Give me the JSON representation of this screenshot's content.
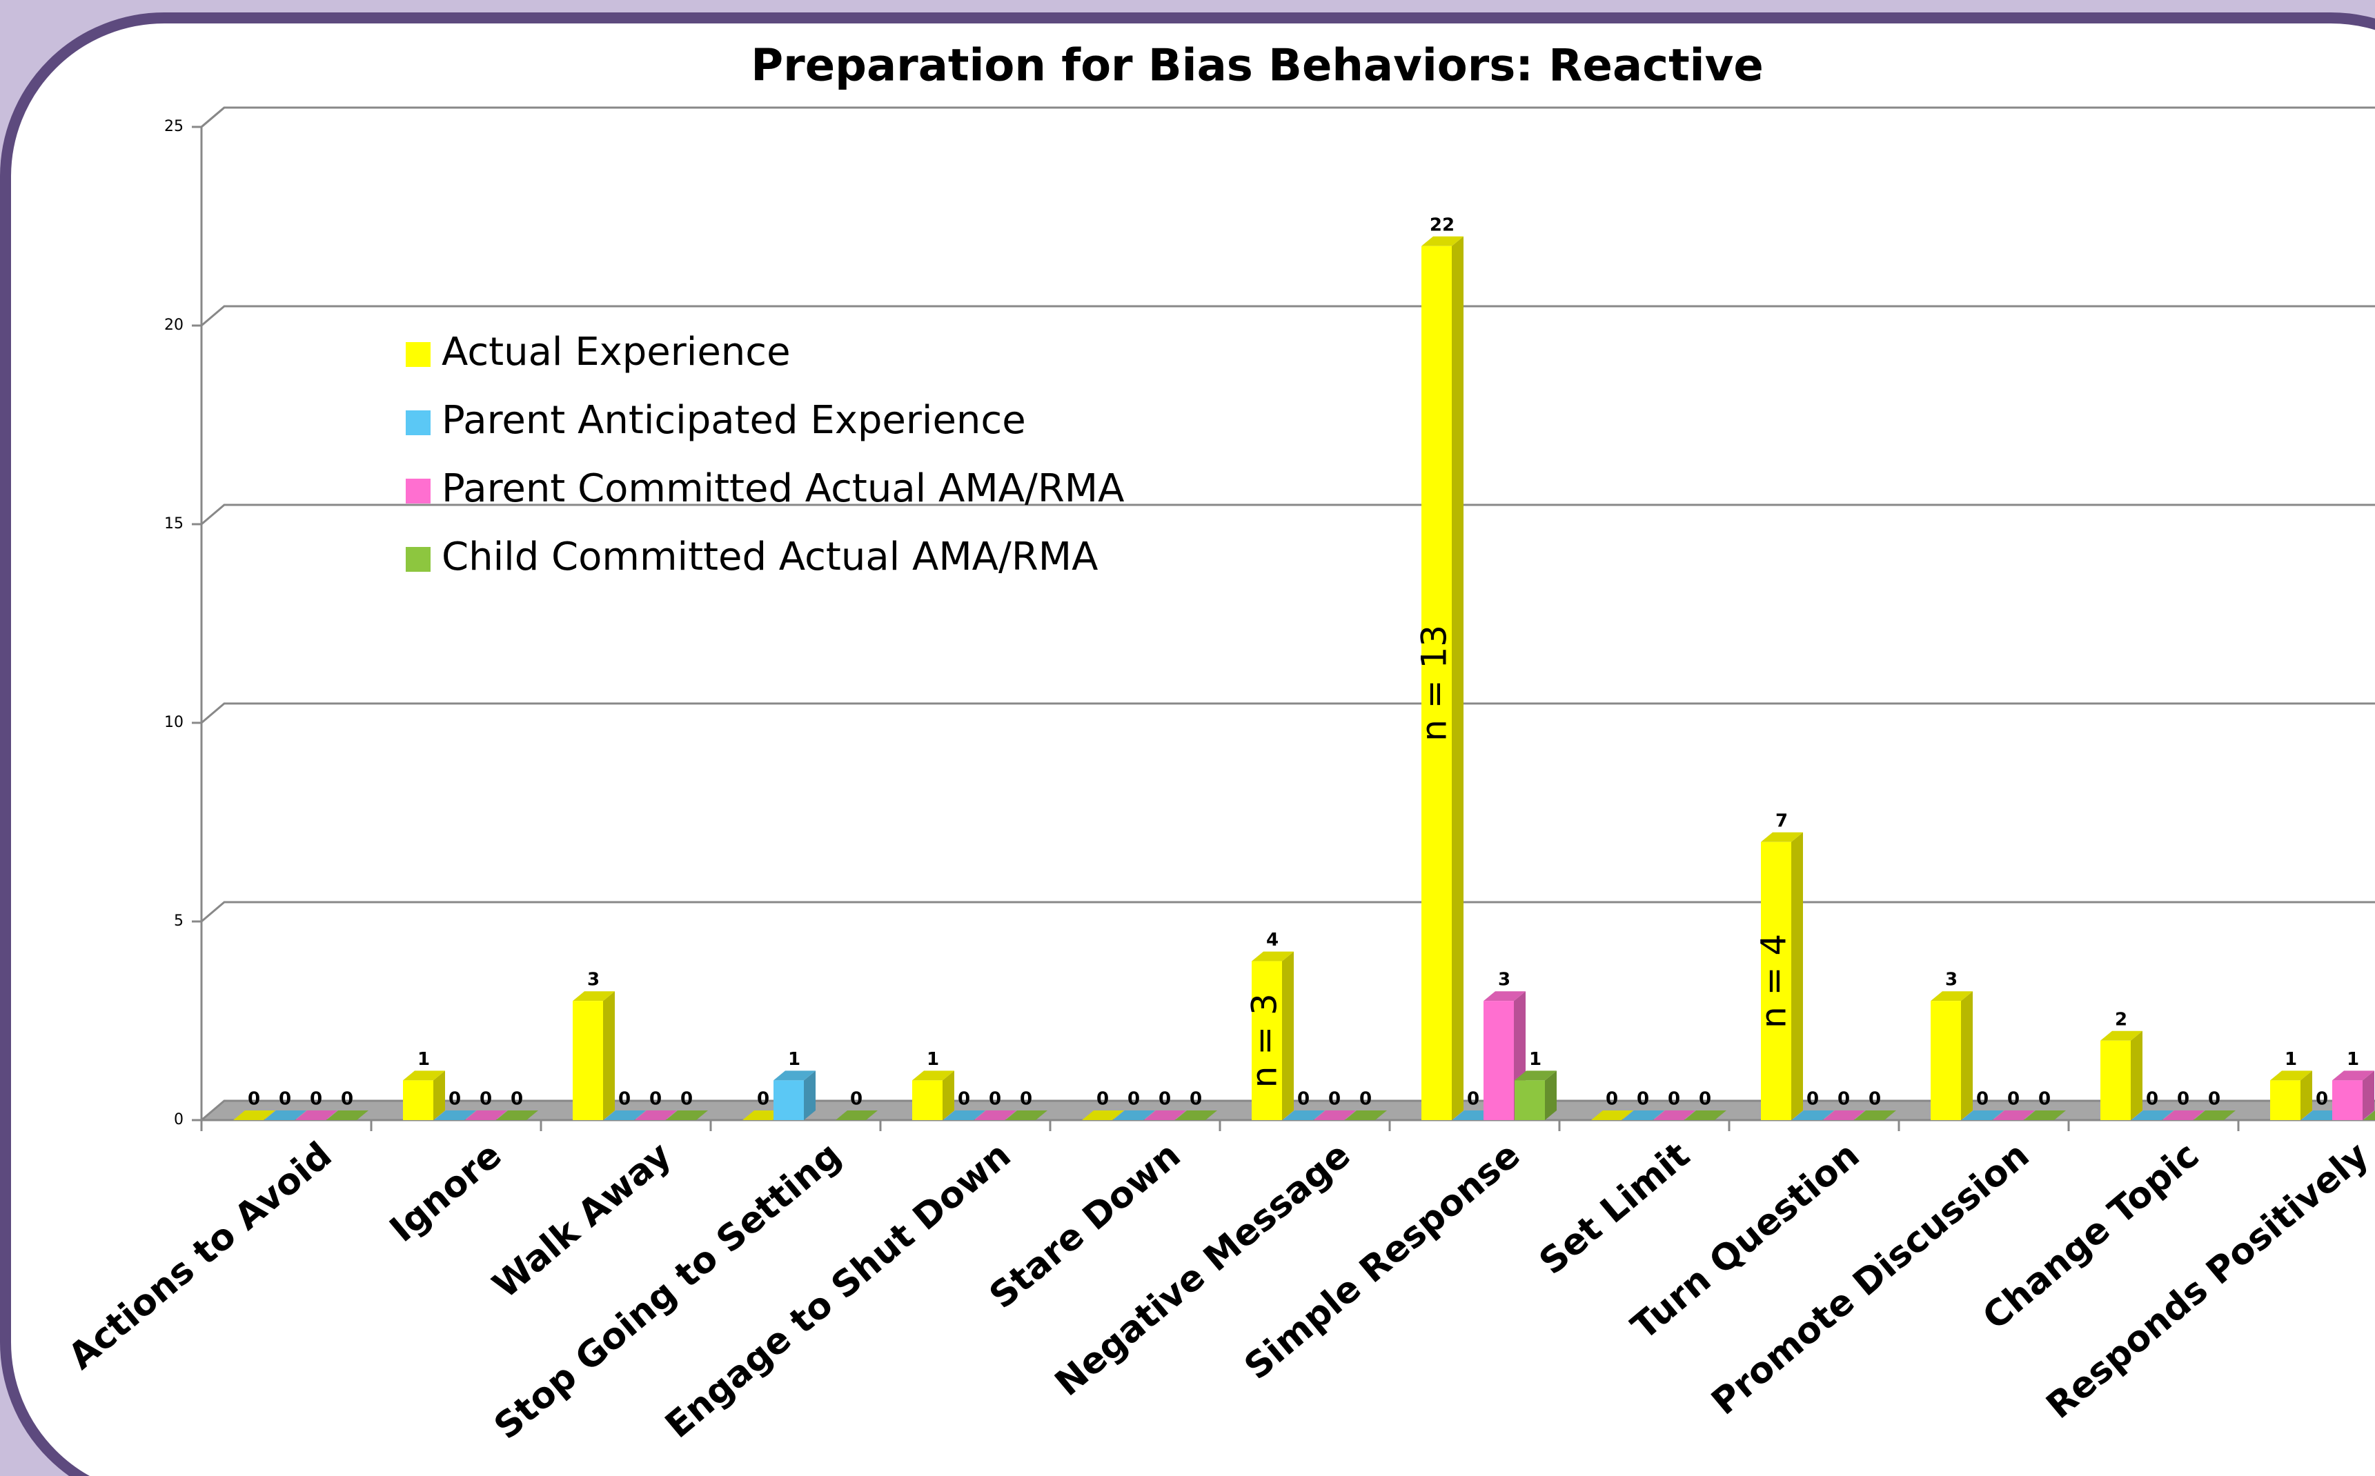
{
  "chart_data": {
    "type": "bar",
    "title": "Preparation for Bias Behaviors: Reactive",
    "categories": [
      "Actions to Avoid",
      "Ignore",
      "Walk Away",
      "Stop Going to Setting",
      "Engage to Shut Down",
      "Stare Down",
      "Negative Message",
      "Simple Response",
      "Set Limit",
      "Turn Question",
      "Promote Discussion",
      "Change Topic",
      "Responds Positively"
    ],
    "series": [
      {
        "name": "Actual Experience",
        "color": "#ffff00",
        "values": [
          0,
          1,
          3,
          0,
          1,
          0,
          4,
          22,
          0,
          7,
          3,
          2,
          1
        ]
      },
      {
        "name": "Parent Anticipated Experience",
        "color": "#5bc8f5",
        "values": [
          0,
          0,
          0,
          1,
          0,
          0,
          0,
          0,
          0,
          0,
          0,
          0,
          0
        ]
      },
      {
        "name": "Parent Committed Actual AMA/RMA",
        "color": "#ff6fd0",
        "values": [
          0,
          0,
          0,
          null,
          0,
          0,
          0,
          3,
          0,
          0,
          0,
          0,
          1
        ]
      },
      {
        "name": "Child Committed Actual AMA/RMA",
        "color": "#8dc63f",
        "values": [
          0,
          0,
          0,
          0,
          0,
          0,
          0,
          1,
          0,
          0,
          0,
          0,
          0
        ]
      }
    ],
    "annotations": [
      {
        "text": "n = 3",
        "category": 6
      },
      {
        "text": "n = 13",
        "category": 7
      },
      {
        "text": "n = 4",
        "category": 9
      }
    ],
    "ylim": [
      0,
      25
    ],
    "yticks": [
      0,
      5,
      10,
      15,
      20,
      25
    ],
    "grid": true,
    "legend": "upper left"
  }
}
